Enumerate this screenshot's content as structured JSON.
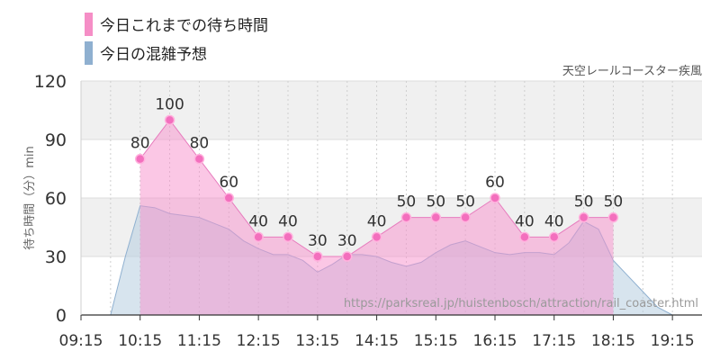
{
  "chart_data": {
    "type": "area",
    "title": "天空レールコースター疾風",
    "ylabel": "待ち時間（分）min",
    "url": "https://parksreal.jp/huistenbosch/attraction/rail_coaster.html",
    "ylim": [
      0,
      120
    ],
    "yticks": [
      0,
      30,
      60,
      90,
      120
    ],
    "xlim": [
      "09:15",
      "19:45"
    ],
    "xticks": [
      "09:15",
      "10:15",
      "11:15",
      "12:15",
      "13:15",
      "14:15",
      "15:15",
      "16:15",
      "17:15",
      "18:15",
      "19:15"
    ],
    "grid": true,
    "legend_position": "top-left",
    "series": [
      {
        "name": "今日これまでの待ち時間",
        "color": "#f58ec6",
        "x": [
          "10:15",
          "10:45",
          "11:15",
          "11:45",
          "12:15",
          "12:45",
          "13:15",
          "13:45",
          "14:15",
          "14:45",
          "15:15",
          "15:45",
          "16:15",
          "16:45",
          "17:15",
          "17:45",
          "18:15"
        ],
        "values": [
          80,
          100,
          80,
          60,
          40,
          40,
          30,
          30,
          40,
          50,
          50,
          50,
          60,
          40,
          40,
          50,
          50
        ]
      },
      {
        "name": "今日の混雑予想",
        "color": "#8fb0d0",
        "x": [
          "09:15",
          "09:30",
          "09:45",
          "10:00",
          "10:15",
          "10:30",
          "10:45",
          "11:00",
          "11:15",
          "11:30",
          "11:45",
          "12:00",
          "12:15",
          "12:30",
          "12:45",
          "13:00",
          "13:15",
          "13:30",
          "13:45",
          "14:00",
          "14:15",
          "14:30",
          "14:45",
          "15:00",
          "15:15",
          "15:30",
          "15:45",
          "16:00",
          "16:15",
          "16:30",
          "16:45",
          "17:00",
          "17:15",
          "17:30",
          "17:45",
          "18:00",
          "18:15",
          "18:30",
          "18:45",
          "19:00",
          "19:15",
          "19:30",
          "19:45"
        ],
        "values": [
          0,
          0,
          0,
          30,
          56,
          55,
          52,
          51,
          50,
          47,
          44,
          38,
          34,
          31,
          31,
          28,
          22,
          26,
          31,
          31,
          30,
          27,
          25,
          27,
          32,
          36,
          38,
          35,
          32,
          31,
          32,
          32,
          31,
          37,
          48,
          44,
          28,
          20,
          12,
          4,
          0,
          0,
          0
        ]
      }
    ]
  }
}
